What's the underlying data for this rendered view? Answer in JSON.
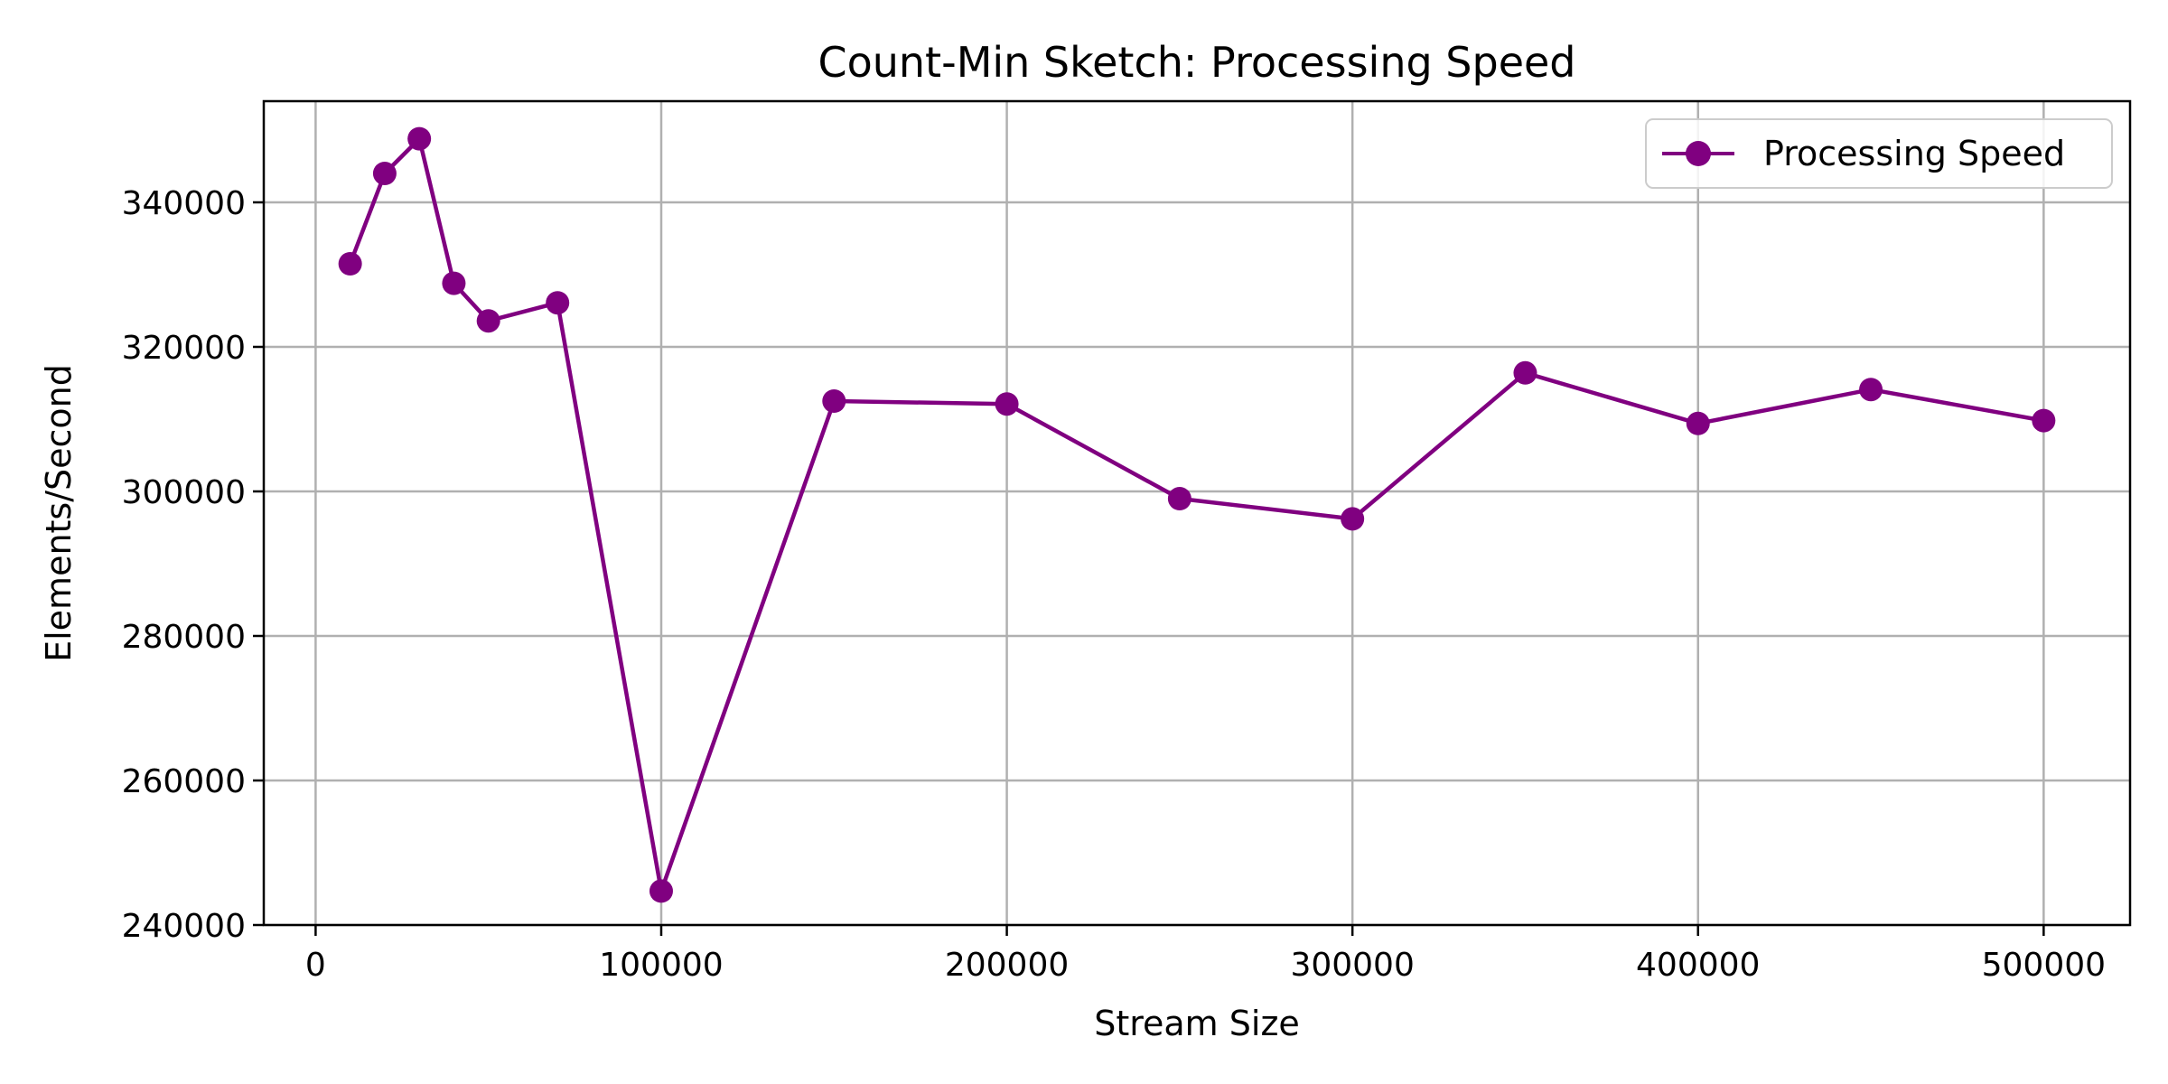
{
  "chart_data": {
    "type": "line",
    "title": "Count-Min Sketch: Processing Speed",
    "xlabel": "Stream Size",
    "ylabel": "Elements/Second",
    "xlim": [
      -15000,
      525000
    ],
    "ylim": [
      240000,
      354000
    ],
    "x_ticks": [
      0,
      100000,
      200000,
      300000,
      400000,
      500000
    ],
    "y_ticks": [
      240000,
      260000,
      280000,
      300000,
      320000,
      340000
    ],
    "grid": true,
    "legend_position": "top-right",
    "series": [
      {
        "name": "Processing Speed",
        "color": "#800080",
        "marker": "circle",
        "x": [
          10000,
          20000,
          30000,
          40000,
          50000,
          70000,
          100000,
          150000,
          200000,
          250000,
          300000,
          350000,
          400000,
          450000,
          500000
        ],
        "y": [
          331500,
          344000,
          348800,
          328800,
          323600,
          326100,
          244700,
          312500,
          312100,
          299000,
          296200,
          316400,
          309400,
          314100,
          309800
        ]
      }
    ]
  }
}
